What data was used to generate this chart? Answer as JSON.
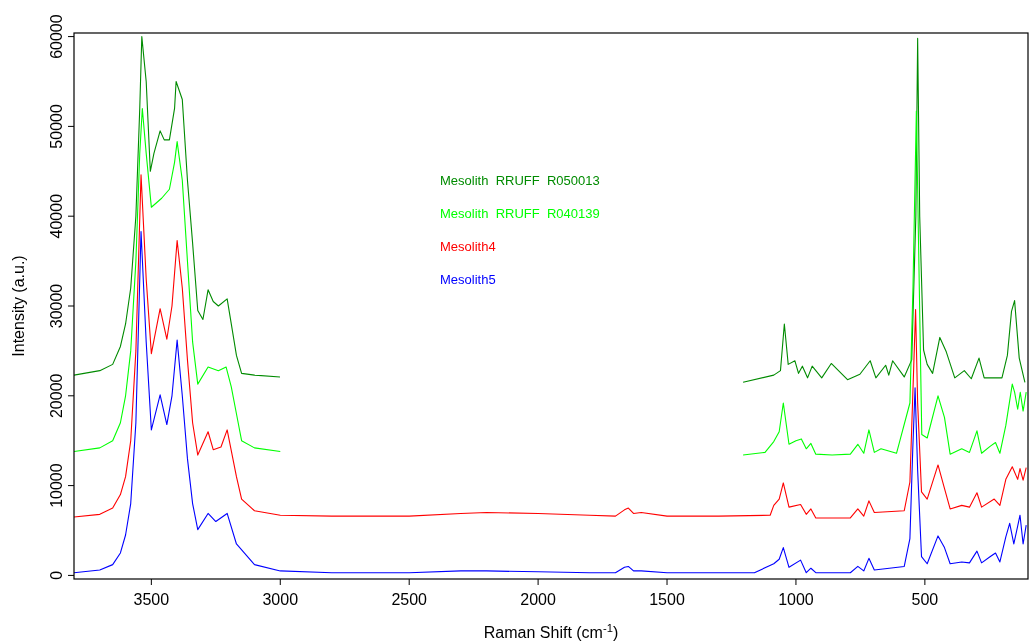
{
  "chart_data": {
    "type": "line",
    "xlabel": "Raman Shift (cm$^{-1}$)",
    "ylabel": "Intensity (a.u.)",
    "xlim": [
      3800,
      100
    ],
    "ylim": [
      -400,
      60400
    ],
    "xticks": [
      3500,
      3000,
      2500,
      2000,
      1500,
      1000,
      500
    ],
    "yticks": [
      0,
      10000,
      20000,
      30000,
      40000,
      50000,
      60000
    ],
    "legend": "top",
    "grid": false,
    "marker": "none",
    "line_style": "solid",
    "series": [
      {
        "name": "Mesolith  RRUFF  R050013",
        "color": "#008b00",
        "x": [
          3800,
          3700,
          3650,
          3620,
          3600,
          3580,
          3560,
          3545,
          3537,
          3520,
          3504,
          3490,
          3466,
          3450,
          3430,
          3410,
          3404,
          3380,
          3360,
          3340,
          3320,
          3300,
          3280,
          3260,
          3240,
          3206,
          3190,
          3170,
          3150,
          3100,
          3001,
          2100,
          1205,
          1086,
          1060,
          1045,
          1030,
          1004,
          990,
          975,
          955,
          937,
          900,
          863,
          800,
          752,
          712,
          690,
          652,
          640,
          625,
          580,
          551,
          535,
          528,
          520,
          505,
          491,
          470,
          442,
          417,
          384,
          347,
          320,
          290,
          270,
          253,
          201,
          180,
          164,
          152,
          134,
          112
        ],
        "values": [
          22300,
          22800,
          23500,
          25500,
          28000,
          32000,
          40000,
          52000,
          60000,
          55000,
          45000,
          47000,
          49500,
          48500,
          48500,
          52000,
          55000,
          53000,
          44000,
          37000,
          29500,
          28500,
          31800,
          30500,
          30000,
          30800,
          28000,
          24500,
          22500,
          22300,
          22100,
          null,
          21500,
          22300,
          22800,
          28000,
          23500,
          23900,
          22500,
          23300,
          22000,
          23300,
          22000,
          23600,
          21800,
          22400,
          23900,
          22000,
          23400,
          22300,
          23900,
          22100,
          24000,
          40000,
          59800,
          40000,
          25100,
          23500,
          22500,
          26500,
          24900,
          22000,
          22800,
          21900,
          24200,
          22000,
          22000,
          22000,
          24500,
          29400,
          30600,
          24200,
          21500
        ]
      },
      {
        "name": "Mesolith  RRUFF  R040139",
        "color": "#00ff00",
        "x": [
          3800,
          3700,
          3650,
          3620,
          3600,
          3580,
          3560,
          3545,
          3535,
          3520,
          3500,
          3460,
          3430,
          3410,
          3400,
          3380,
          3360,
          3340,
          3320,
          3280,
          3240,
          3210,
          3190,
          3170,
          3150,
          3100,
          3000,
          2100,
          1205,
          1120,
          1086,
          1065,
          1049,
          1027,
          1000,
          979,
          960,
          942,
          923,
          860,
          789,
          760,
          737,
          717,
          696,
          670,
          610,
          558,
          546,
          533,
          524,
          512,
          491,
          449,
          424,
          402,
          357,
          327,
          298,
          280,
          246,
          226,
          209,
          186,
          161,
          152,
          140,
          130,
          119,
          107
        ],
        "values": [
          13800,
          14200,
          15000,
          17000,
          20000,
          25000,
          35000,
          47000,
          52000,
          47000,
          41000,
          42000,
          43000,
          46000,
          48300,
          44000,
          35000,
          26000,
          21300,
          23200,
          22800,
          23200,
          21000,
          18000,
          15000,
          14200,
          13800,
          null,
          13400,
          13700,
          14900,
          16000,
          19200,
          14600,
          15000,
          15200,
          14100,
          14700,
          13500,
          13400,
          13500,
          14600,
          13600,
          16200,
          13700,
          14100,
          13600,
          19200,
          32200,
          51700,
          36200,
          15700,
          15300,
          20000,
          17600,
          13500,
          14100,
          13700,
          16100,
          13600,
          14400,
          14800,
          13600,
          16700,
          21300,
          20400,
          18500,
          20400,
          18300,
          20400
        ]
      },
      {
        "name": "Mesolith4",
        "color": "#ff0000",
        "x": [
          3800,
          3700,
          3650,
          3620,
          3600,
          3580,
          3560,
          3540,
          3520,
          3500,
          3466,
          3440,
          3420,
          3400,
          3380,
          3360,
          3340,
          3320,
          3280,
          3260,
          3230,
          3206,
          3170,
          3150,
          3100,
          3000,
          2800,
          2500,
          2300,
          2200,
          2000,
          1800,
          1700,
          1665,
          1650,
          1630,
          1600,
          1500,
          1300,
          1100,
          1086,
          1065,
          1049,
          1027,
          982,
          960,
          942,
          923,
          789,
          760,
          737,
          717,
          696,
          580,
          558,
          543,
          536,
          528,
          513,
          491,
          449,
          424,
          402,
          357,
          327,
          298,
          280,
          231,
          209,
          186,
          161,
          140,
          131,
          119,
          107
        ],
        "values": [
          6500,
          6800,
          7500,
          9000,
          11000,
          15000,
          25000,
          44600,
          33000,
          24700,
          29700,
          26300,
          30000,
          37300,
          32000,
          24000,
          17000,
          13400,
          16000,
          14000,
          14300,
          16200,
          11000,
          8500,
          7200,
          6700,
          6600,
          6600,
          6900,
          7000,
          6900,
          6700,
          6600,
          7300,
          7500,
          6900,
          7000,
          6600,
          6600,
          6700,
          7800,
          8500,
          10300,
          7600,
          7900,
          6800,
          7400,
          6400,
          6400,
          7400,
          6600,
          8300,
          7000,
          7200,
          10400,
          23400,
          29600,
          19200,
          9300,
          8500,
          12300,
          9700,
          7400,
          7800,
          7600,
          9200,
          7600,
          8500,
          7800,
          10700,
          12100,
          10700,
          11900,
          10600,
          12000
        ]
      },
      {
        "name": "Mesolith5",
        "color": "#0000ff",
        "x": [
          3800,
          3700,
          3650,
          3620,
          3600,
          3580,
          3560,
          3540,
          3520,
          3500,
          3466,
          3440,
          3420,
          3400,
          3380,
          3360,
          3340,
          3320,
          3280,
          3250,
          3206,
          3170,
          3100,
          3000,
          2800,
          2500,
          2300,
          2200,
          2000,
          1800,
          1700,
          1665,
          1650,
          1630,
          1600,
          1500,
          1300,
          1161,
          1086,
          1065,
          1049,
          1027,
          982,
          960,
          942,
          923,
          789,
          760,
          737,
          717,
          696,
          580,
          558,
          547,
          538,
          528,
          513,
          491,
          449,
          424,
          402,
          357,
          327,
          298,
          280,
          246,
          226,
          209,
          186,
          171,
          155,
          131,
          119,
          107
        ],
        "values": [
          300,
          600,
          1200,
          2500,
          4500,
          8000,
          17000,
          38300,
          26000,
          16200,
          20100,
          16800,
          20000,
          26200,
          20000,
          13000,
          8000,
          5100,
          6900,
          6000,
          6900,
          3500,
          1200,
          500,
          300,
          300,
          500,
          500,
          400,
          300,
          300,
          900,
          1000,
          500,
          500,
          300,
          300,
          300,
          1300,
          1800,
          3100,
          900,
          1700,
          300,
          800,
          300,
          300,
          1000,
          500,
          1900,
          600,
          1000,
          4100,
          14000,
          20900,
          11700,
          2100,
          1300,
          4400,
          3100,
          1300,
          1500,
          1400,
          2700,
          1400,
          2100,
          2500,
          1500,
          4300,
          5800,
          3500,
          6700,
          3500,
          5600
        ]
      }
    ]
  }
}
